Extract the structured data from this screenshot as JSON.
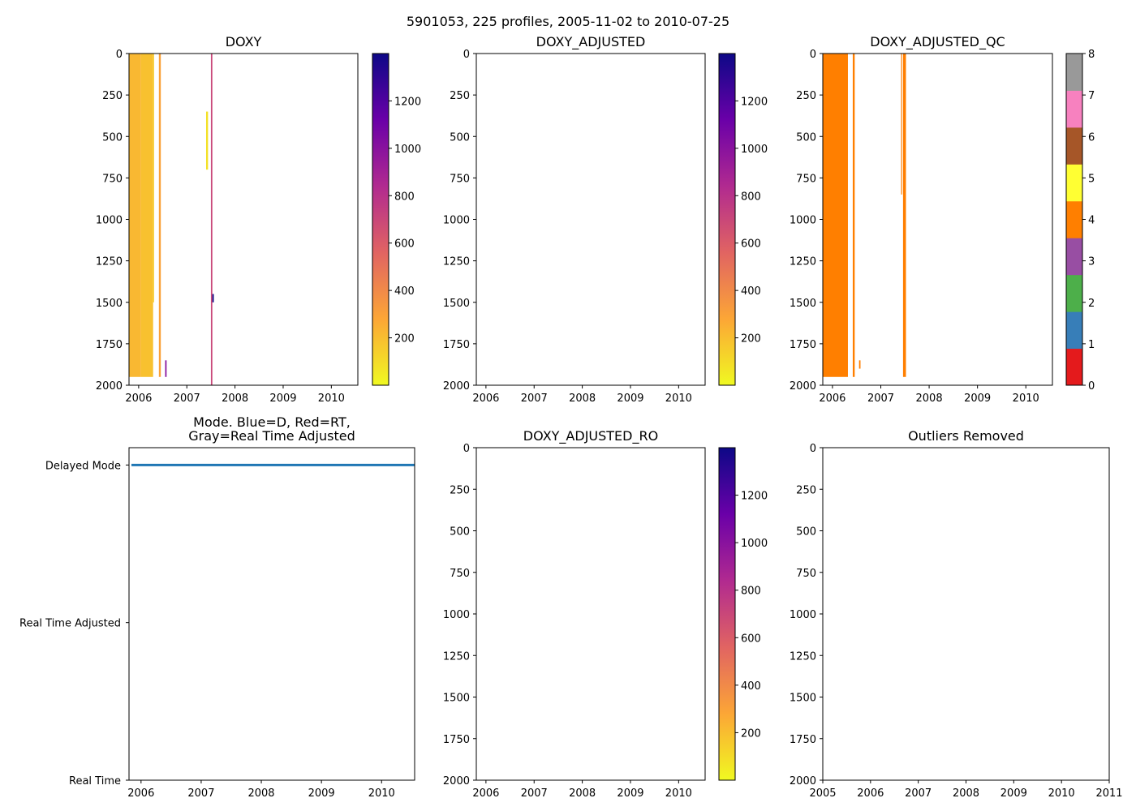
{
  "figure": {
    "suptitle": "5901053, 225 profiles, 2005-11-02 to 2010-07-25"
  },
  "chart_data": [
    {
      "id": "doxy",
      "type": "heatmap",
      "title": "DOXY",
      "x_ticks": [
        "2006",
        "2007",
        "2008",
        "2009",
        "2010"
      ],
      "x_tick_values": [
        2006.0,
        2007.0,
        2008.0,
        2009.0,
        2010.0
      ],
      "xlim": [
        2005.8,
        2010.55
      ],
      "y_ticks": [
        "0",
        "250",
        "500",
        "750",
        "1000",
        "1250",
        "1500",
        "1750",
        "2000"
      ],
      "y_tick_values": [
        0,
        250,
        500,
        750,
        1000,
        1250,
        1500,
        1750,
        2000
      ],
      "ylim": [
        0,
        2000
      ],
      "y_inverted": true,
      "colormap": "plasma_r",
      "colorbar": {
        "ticks": [
          "200",
          "400",
          "600",
          "800",
          "1000",
          "1200"
        ],
        "tick_values": [
          200,
          400,
          600,
          800,
          1000,
          1200
        ],
        "range": [
          0,
          1400
        ],
        "stops": [
          "#f0f921",
          "#fca636",
          "#e16462",
          "#b12a90",
          "#6a00a8",
          "#0d0887"
        ]
      },
      "data_regions": [
        {
          "x0": 2005.8,
          "x1": 2006.05,
          "y0": 0,
          "y1": 1950,
          "value": 220
        },
        {
          "x0": 2006.05,
          "x1": 2006.3,
          "y0": 0,
          "y1": 1950,
          "value": 190
        },
        {
          "x0": 2006.3,
          "x1": 2006.32,
          "y0": 0,
          "y1": 1500,
          "value": 150
        },
        {
          "x0": 2006.42,
          "x1": 2006.46,
          "y0": 0,
          "y1": 1950,
          "value": 300
        },
        {
          "x0": 2006.55,
          "x1": 2006.58,
          "y0": 1850,
          "y1": 1950,
          "value": 1000
        },
        {
          "x0": 2007.4,
          "x1": 2007.44,
          "y0": 350,
          "y1": 700,
          "value": 80
        },
        {
          "x0": 2007.5,
          "x1": 2007.53,
          "y0": 0,
          "y1": 2000,
          "value": 700
        },
        {
          "x0": 2007.53,
          "x1": 2007.56,
          "y0": 1450,
          "y1": 1500,
          "value": 1400
        }
      ]
    },
    {
      "id": "doxy-adjusted",
      "type": "heatmap",
      "title": "DOXY_ADJUSTED",
      "x_ticks": [
        "2006",
        "2007",
        "2008",
        "2009",
        "2010"
      ],
      "x_tick_values": [
        2006.0,
        2007.0,
        2008.0,
        2009.0,
        2010.0
      ],
      "xlim": [
        2005.8,
        2010.55
      ],
      "y_ticks": [
        "0",
        "250",
        "500",
        "750",
        "1000",
        "1250",
        "1500",
        "1750",
        "2000"
      ],
      "y_tick_values": [
        0,
        250,
        500,
        750,
        1000,
        1250,
        1500,
        1750,
        2000
      ],
      "ylim": [
        0,
        2000
      ],
      "y_inverted": true,
      "colormap": "plasma_r",
      "colorbar": {
        "ticks": [
          "200",
          "400",
          "600",
          "800",
          "1000",
          "1200"
        ],
        "tick_values": [
          200,
          400,
          600,
          800,
          1000,
          1200
        ],
        "range": [
          0,
          1400
        ],
        "stops": [
          "#f0f921",
          "#fca636",
          "#e16462",
          "#b12a90",
          "#6a00a8",
          "#0d0887"
        ]
      },
      "data_regions": []
    },
    {
      "id": "doxy-adjusted-qc",
      "type": "heatmap",
      "title": "DOXY_ADJUSTED_QC",
      "x_ticks": [
        "2006",
        "2007",
        "2008",
        "2009",
        "2010"
      ],
      "x_tick_values": [
        2006.0,
        2007.0,
        2008.0,
        2009.0,
        2010.0
      ],
      "xlim": [
        2005.8,
        2010.55
      ],
      "y_ticks": [
        "0",
        "250",
        "500",
        "750",
        "1000",
        "1250",
        "1500",
        "1750",
        "2000"
      ],
      "y_tick_values": [
        0,
        250,
        500,
        750,
        1000,
        1250,
        1500,
        1750,
        2000
      ],
      "ylim": [
        0,
        2000
      ],
      "y_inverted": true,
      "colormap": "Set1",
      "colorbar": {
        "ticks": [
          "0",
          "1",
          "2",
          "3",
          "4",
          "5",
          "6",
          "7",
          "8"
        ],
        "tick_values": [
          0,
          1,
          2,
          3,
          4,
          5,
          6,
          7,
          8
        ],
        "range": [
          0,
          8
        ],
        "discrete_colors": [
          "#e41a1c",
          "#377eb8",
          "#4daf4a",
          "#984ea3",
          "#ff7f00",
          "#ffff33",
          "#a65628",
          "#f781bf",
          "#999999"
        ]
      },
      "qc_color": "#ff7f00",
      "data_regions": [
        {
          "x0": 2005.8,
          "x1": 2006.32,
          "y0": 0,
          "y1": 1950
        },
        {
          "x0": 2006.42,
          "x1": 2006.46,
          "y0": 0,
          "y1": 1950
        },
        {
          "x0": 2006.55,
          "x1": 2006.58,
          "y0": 1850,
          "y1": 1900
        },
        {
          "x0": 2007.42,
          "x1": 2007.44,
          "y0": 0,
          "y1": 850
        },
        {
          "x0": 2007.46,
          "x1": 2007.52,
          "y0": 0,
          "y1": 1950
        }
      ]
    },
    {
      "id": "mode",
      "type": "scatter",
      "title_line1": "Mode. Blue=D, Red=RT,",
      "title_line2": "Gray=Real Time Adjusted",
      "x_ticks": [
        "2006",
        "2007",
        "2008",
        "2009",
        "2010"
      ],
      "x_tick_values": [
        2006.0,
        2007.0,
        2008.0,
        2009.0,
        2010.0
      ],
      "xlim": [
        2005.8,
        2010.55
      ],
      "categories": [
        "Delayed Mode",
        "Real Time Adjusted",
        "Real Time"
      ],
      "category_positions": [
        2,
        1,
        0
      ],
      "ylim": [
        0,
        2.11
      ],
      "series": [
        {
          "name": "Delayed Mode",
          "color": "#1f77b4",
          "y": 2,
          "x_start": 2005.84,
          "x_end": 2010.56
        }
      ]
    },
    {
      "id": "doxy-adjusted-ro",
      "type": "heatmap",
      "title": "DOXY_ADJUSTED_RO",
      "x_ticks": [
        "2006",
        "2007",
        "2008",
        "2009",
        "2010"
      ],
      "x_tick_values": [
        2006.0,
        2007.0,
        2008.0,
        2009.0,
        2010.0
      ],
      "xlim": [
        2005.8,
        2010.55
      ],
      "y_ticks": [
        "0",
        "250",
        "500",
        "750",
        "1000",
        "1250",
        "1500",
        "1750",
        "2000"
      ],
      "y_tick_values": [
        0,
        250,
        500,
        750,
        1000,
        1250,
        1500,
        1750,
        2000
      ],
      "ylim": [
        0,
        2000
      ],
      "y_inverted": true,
      "colormap": "plasma_r",
      "colorbar": {
        "ticks": [
          "200",
          "400",
          "600",
          "800",
          "1000",
          "1200"
        ],
        "tick_values": [
          200,
          400,
          600,
          800,
          1000,
          1200
        ],
        "range": [
          0,
          1400
        ],
        "stops": [
          "#f0f921",
          "#fca636",
          "#e16462",
          "#b12a90",
          "#6a00a8",
          "#0d0887"
        ]
      },
      "data_regions": []
    },
    {
      "id": "outliers-removed",
      "type": "scatter",
      "title": "Outliers Removed",
      "x_ticks": [
        "2005",
        "2006",
        "2007",
        "2008",
        "2009",
        "2010",
        "2011"
      ],
      "x_tick_values": [
        2005,
        2006,
        2007,
        2008,
        2009,
        2010,
        2011
      ],
      "xlim": [
        2005,
        2011
      ],
      "y_ticks": [
        "0",
        "250",
        "500",
        "750",
        "1000",
        "1250",
        "1500",
        "1750",
        "2000"
      ],
      "y_tick_values": [
        0,
        250,
        500,
        750,
        1000,
        1250,
        1500,
        1750,
        2000
      ],
      "ylim": [
        0,
        2000
      ],
      "y_inverted": true,
      "series": []
    }
  ]
}
